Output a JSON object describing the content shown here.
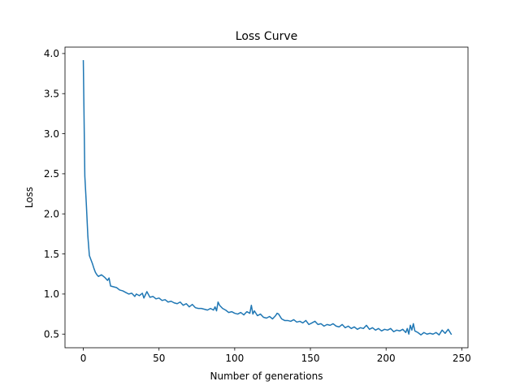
{
  "chart_data": {
    "type": "line",
    "title": "Loss Curve",
    "xlabel": "Number of generations",
    "ylabel": "Loss",
    "xlim": [
      -12.1,
      254.1
    ],
    "ylim": [
      0.33,
      4.08
    ],
    "xticks": [
      0,
      50,
      100,
      150,
      200,
      250
    ],
    "yticks": [
      0.5,
      1.0,
      1.5,
      2.0,
      2.5,
      3.0,
      3.5,
      4.0
    ],
    "xtick_labels": [
      "0",
      "50",
      "100",
      "150",
      "200",
      "250"
    ],
    "ytick_labels": [
      "0.5",
      "1.0",
      "1.5",
      "2.0",
      "2.5",
      "3.0",
      "3.5",
      "4.0"
    ],
    "grid": false,
    "legend": "none",
    "series": [
      {
        "color": "#1f77b4",
        "x": [
          0,
          1,
          2,
          3,
          4,
          5,
          6,
          7,
          8,
          9,
          10,
          12,
          14,
          15,
          16,
          17,
          18,
          20,
          22,
          24,
          26,
          28,
          30,
          32,
          34,
          35,
          37,
          39,
          40,
          41,
          42,
          44,
          46,
          48,
          50,
          52,
          54,
          56,
          58,
          60,
          62,
          64,
          66,
          68,
          70,
          72,
          74,
          76,
          78,
          80,
          82,
          84,
          86,
          87,
          88,
          89,
          90,
          92,
          94,
          96,
          98,
          100,
          102,
          104,
          106,
          108,
          110,
          111,
          112,
          113,
          115,
          117,
          119,
          121,
          123,
          125,
          127,
          128,
          129,
          131,
          133,
          135,
          137,
          139,
          141,
          143,
          145,
          147,
          149,
          151,
          153,
          155,
          157,
          159,
          161,
          163,
          165,
          167,
          169,
          171,
          173,
          175,
          177,
          179,
          181,
          183,
          185,
          187,
          189,
          191,
          193,
          195,
          197,
          199,
          201,
          203,
          205,
          207,
          209,
          211,
          213,
          214,
          215,
          216,
          217,
          218,
          219,
          221,
          223,
          225,
          227,
          229,
          231,
          233,
          235,
          237,
          239,
          241,
          243
        ],
        "y": [
          3.91,
          2.47,
          2.12,
          1.72,
          1.48,
          1.43,
          1.38,
          1.32,
          1.27,
          1.24,
          1.22,
          1.24,
          1.21,
          1.19,
          1.17,
          1.2,
          1.1,
          1.09,
          1.08,
          1.05,
          1.04,
          1.02,
          1.0,
          1.01,
          0.97,
          1.0,
          0.98,
          1.01,
          0.95,
          0.99,
          1.03,
          0.96,
          0.97,
          0.94,
          0.95,
          0.92,
          0.93,
          0.9,
          0.91,
          0.89,
          0.88,
          0.9,
          0.86,
          0.88,
          0.84,
          0.87,
          0.83,
          0.82,
          0.82,
          0.81,
          0.8,
          0.82,
          0.8,
          0.84,
          0.79,
          0.9,
          0.86,
          0.82,
          0.8,
          0.77,
          0.78,
          0.76,
          0.75,
          0.77,
          0.74,
          0.78,
          0.76,
          0.86,
          0.75,
          0.79,
          0.73,
          0.75,
          0.71,
          0.7,
          0.72,
          0.69,
          0.73,
          0.76,
          0.75,
          0.69,
          0.67,
          0.67,
          0.66,
          0.68,
          0.65,
          0.66,
          0.64,
          0.67,
          0.62,
          0.64,
          0.66,
          0.62,
          0.63,
          0.6,
          0.62,
          0.61,
          0.63,
          0.6,
          0.59,
          0.62,
          0.58,
          0.6,
          0.57,
          0.59,
          0.56,
          0.58,
          0.57,
          0.61,
          0.56,
          0.58,
          0.55,
          0.57,
          0.54,
          0.56,
          0.55,
          0.57,
          0.53,
          0.55,
          0.54,
          0.56,
          0.52,
          0.57,
          0.5,
          0.61,
          0.55,
          0.63,
          0.54,
          0.52,
          0.49,
          0.52,
          0.5,
          0.51,
          0.5,
          0.52,
          0.49,
          0.55,
          0.51,
          0.56,
          0.5
        ]
      }
    ]
  }
}
